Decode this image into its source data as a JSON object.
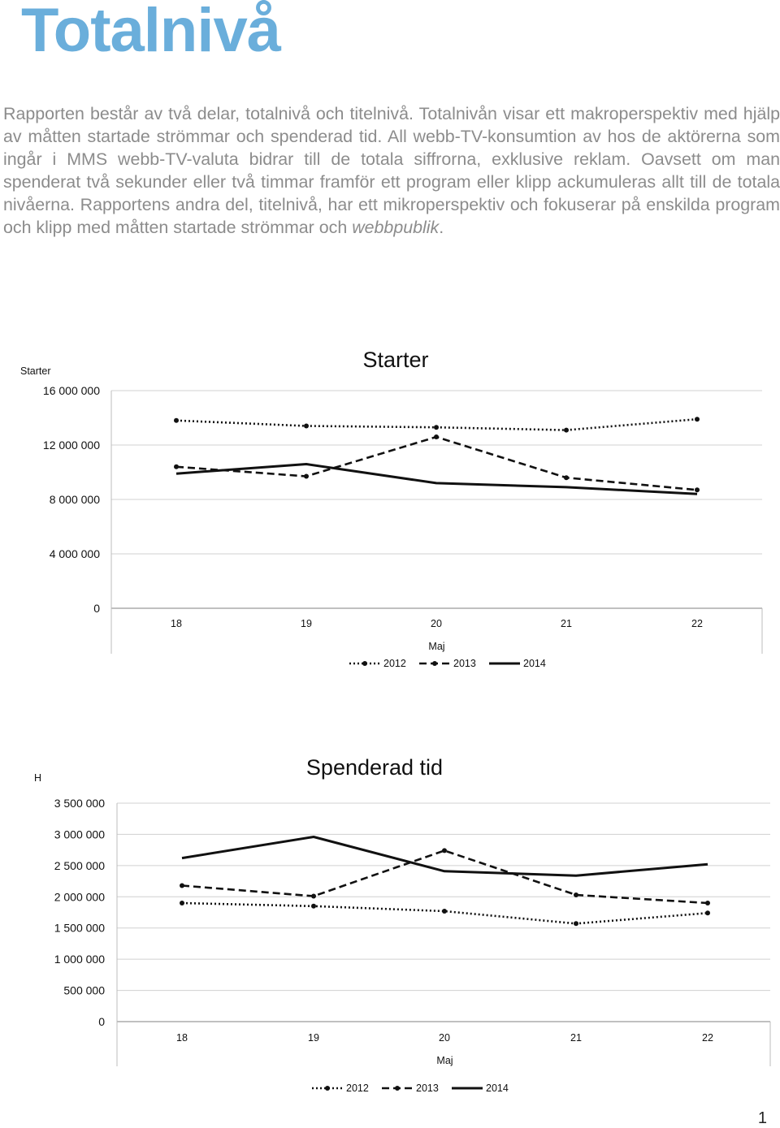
{
  "heading": "Totalnivå",
  "intro": {
    "part1": "Rapporten består av två delar, totalnivå och titelnivå. Totalnivån visar ett makroperspektiv med hjälp av måtten startade strömmar och spenderad tid. All webb-TV-konsumtion av hos de aktörerna som ingår i MMS webb-TV-valuta bidrar till de totala siffrorna, exklusive reklam. Oavsett om man spenderat två sekunder eller två timmar framför ett program eller klipp ackumuleras allt till de totala nivåerna. Rapportens andra del, titelnivå, har ett mikroperspektiv och fokuserar på enskilda program och klipp med måtten startade strömmar och ",
    "emphasis": "webbpublik",
    "part2": "."
  },
  "page_number": "1",
  "chart_data": [
    {
      "type": "line",
      "title": "Starter",
      "ylabel": "Starter",
      "xlabel": "Maj",
      "categories": [
        "18",
        "19",
        "20",
        "21",
        "22"
      ],
      "ylim": [
        0,
        16000000
      ],
      "yticks": [
        0,
        4000000,
        8000000,
        12000000,
        16000000
      ],
      "ytick_labels": [
        "0",
        "4 000 000",
        "8 000 000",
        "12 000 000",
        "16 000 000"
      ],
      "grid": true,
      "legend_position": "bottom",
      "series": [
        {
          "name": "2012",
          "style": "dotted",
          "markers": true,
          "values": [
            13800000,
            13400000,
            13300000,
            13100000,
            13900000
          ]
        },
        {
          "name": "2013",
          "style": "dashed",
          "markers": true,
          "values": [
            10400000,
            9700000,
            12600000,
            9600000,
            8700000
          ]
        },
        {
          "name": "2014",
          "style": "solid",
          "markers": false,
          "values": [
            9900000,
            10600000,
            9200000,
            8900000,
            8400000
          ]
        }
      ]
    },
    {
      "type": "line",
      "title": "Spenderad tid",
      "ylabel": "H",
      "xlabel": "Maj",
      "categories": [
        "18",
        "19",
        "20",
        "21",
        "22"
      ],
      "ylim": [
        0,
        3500000
      ],
      "yticks": [
        0,
        500000,
        1000000,
        1500000,
        2000000,
        2500000,
        3000000,
        3500000
      ],
      "ytick_labels": [
        "0",
        "500 000",
        "1 000 000",
        "1 500 000",
        "2 000 000",
        "2 500 000",
        "3 000 000",
        "3 500 000"
      ],
      "grid": true,
      "legend_position": "bottom",
      "series": [
        {
          "name": "2012",
          "style": "dotted",
          "markers": true,
          "values": [
            1900000,
            1850000,
            1770000,
            1570000,
            1740000
          ]
        },
        {
          "name": "2013",
          "style": "dashed",
          "markers": true,
          "values": [
            2180000,
            2010000,
            2740000,
            2030000,
            1900000
          ]
        },
        {
          "name": "2014",
          "style": "solid",
          "markers": false,
          "values": [
            2620000,
            2960000,
            2410000,
            2340000,
            2520000
          ]
        }
      ]
    }
  ]
}
